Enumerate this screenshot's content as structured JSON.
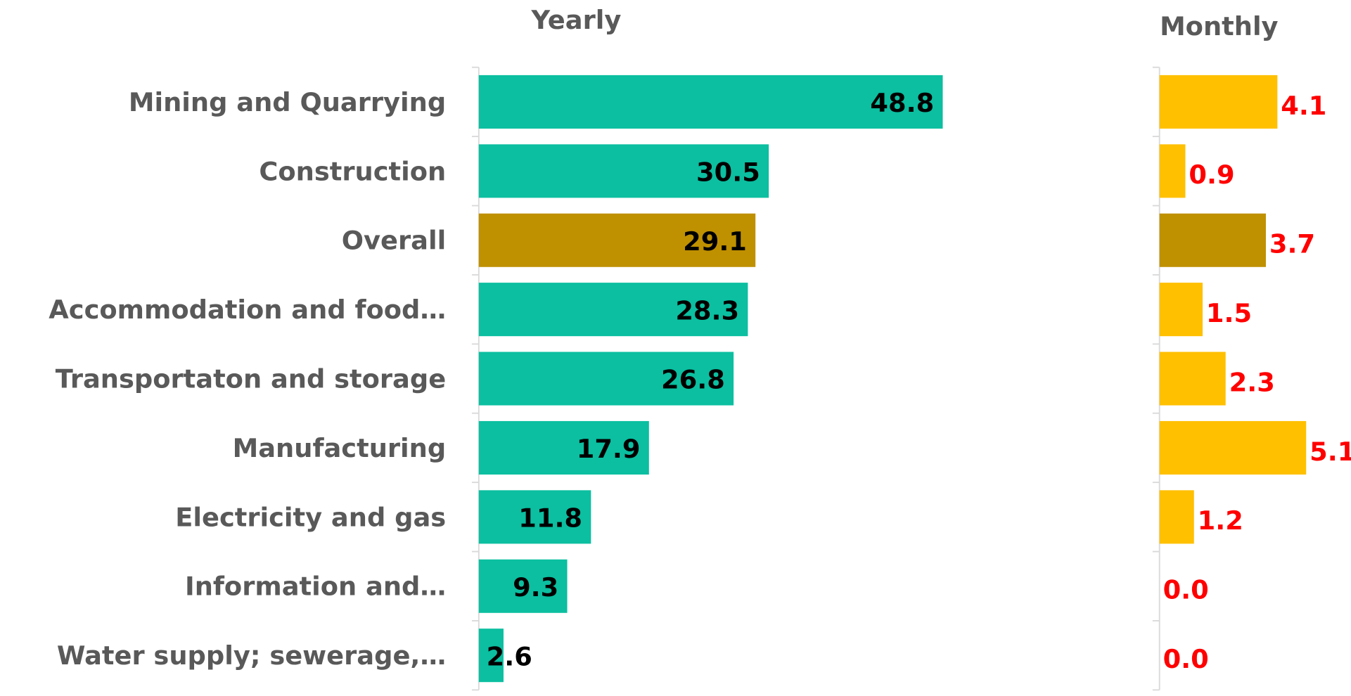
{
  "chart_data": [
    {
      "type": "bar",
      "orientation": "horizontal",
      "title": "Yearly",
      "categories": [
        "Mining and Quarrying",
        "Construction",
        "Overall",
        "Accommodation and food…",
        "Transportaton and storage",
        "Manufacturing",
        "Electricity and gas",
        "Information and…",
        "Water supply; sewerage,…"
      ],
      "values": [
        48.8,
        30.5,
        29.1,
        28.3,
        26.8,
        17.9,
        11.8,
        9.3,
        2.6
      ],
      "colors": [
        "#0bbfa0",
        "#0bbfa0",
        "#bf9000",
        "#0bbfa0",
        "#0bbfa0",
        "#0bbfa0",
        "#0bbfa0",
        "#0bbfa0",
        "#0bbfa0"
      ],
      "label_color": "#000000",
      "xlim": [
        0,
        50
      ]
    },
    {
      "type": "bar",
      "orientation": "horizontal",
      "title": "Monthly",
      "values": [
        4.1,
        0.9,
        3.7,
        1.5,
        2.3,
        5.1,
        1.2,
        0,
        0
      ],
      "value_labels": [
        "4.1",
        "0.9",
        "3.7",
        "1.5",
        "2.3",
        "5.1",
        "1.2",
        "0.0",
        "0.0"
      ],
      "colors": [
        "#ffc000",
        "#ffc000",
        "#bf9000",
        "#ffc000",
        "#ffc000",
        "#ffc000",
        "#ffc000",
        "#ffc000",
        "#ffc000"
      ],
      "label_color": "#ff0000",
      "xlim": [
        0,
        6
      ]
    }
  ]
}
